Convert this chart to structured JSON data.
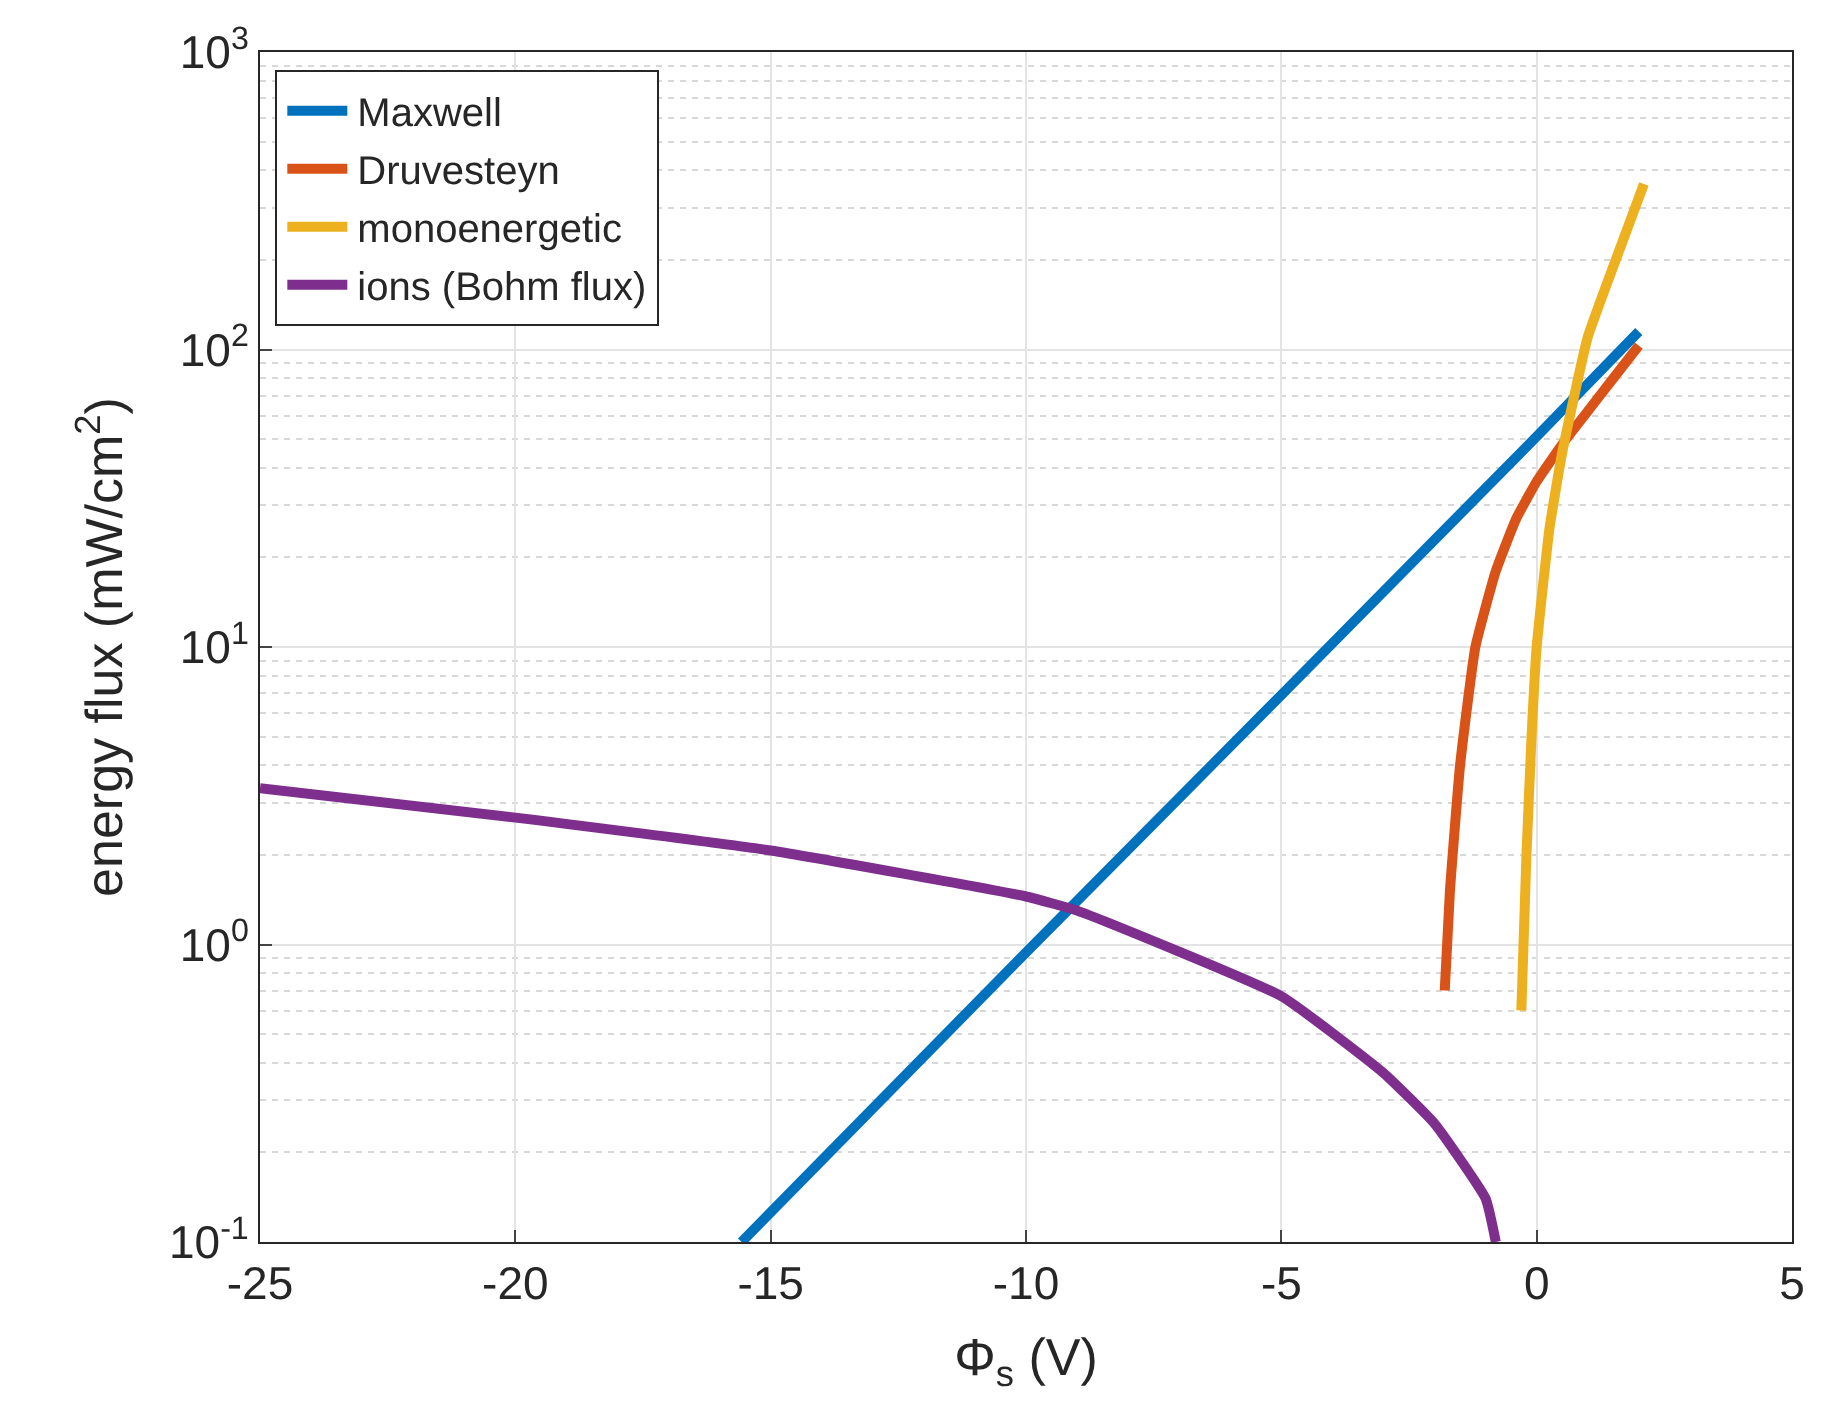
{
  "chart_data": {
    "type": "line",
    "xlabel": "Φ$_{s}$ (V)",
    "ylabel": "energy flux (mW/cm$^{2}$)",
    "log": "y",
    "grid": true,
    "legend": "top left",
    "line_style": "solid",
    "marker": "none",
    "xlim": [
      -25,
      5
    ],
    "xticks": [
      -25,
      -20,
      -15,
      -10,
      -5,
      0,
      5
    ],
    "ylim": [
      0.1,
      1000
    ],
    "yticks": [
      {
        "value": 0.1,
        "label": "10$^{-1}$"
      },
      {
        "value": 1,
        "label": "10$^{0}$"
      },
      {
        "value": 10,
        "label": "10$^{1}$"
      },
      {
        "value": 100,
        "label": "10$^{2}$"
      },
      {
        "value": 1000,
        "label": "10$^{3}$"
      }
    ],
    "series": [
      {
        "name": "Maxwell",
        "color": "#0072bd",
        "x": [
          -15.57,
          -10,
          -5,
          0,
          2
        ],
        "values": [
          0.1,
          0.94,
          6.9,
          51,
          115
        ]
      },
      {
        "name": "Druvesteyn",
        "color": "#d95319",
        "x": [
          -1.8,
          -1.7,
          -1.5,
          -1.2,
          -0.8,
          -0.4,
          0,
          0.5,
          1,
          1.5,
          2
        ],
        "values": [
          0.7,
          1.5,
          4,
          10,
          18,
          27,
          36,
          48,
          62,
          80,
          103
        ]
      },
      {
        "name": "monoenergetic",
        "color": "#edb120",
        "x": [
          -0.3,
          -0.2,
          -0.1,
          0,
          0.25,
          0.5,
          1,
          1.5,
          2.1
        ],
        "values": [
          0.6,
          2,
          5,
          10,
          25,
          45,
          110,
          190,
          360
        ]
      },
      {
        "name": "ions (Bohm flux)",
        "color": "#7e2f8e",
        "x": [
          -25,
          -20,
          -15,
          -10,
          -9,
          -5,
          -3,
          -2,
          -1,
          -0.8
        ],
        "values": [
          3.35,
          2.67,
          2.07,
          1.45,
          1.3,
          0.67,
          0.37,
          0.25,
          0.14,
          0.1
        ]
      }
    ]
  }
}
